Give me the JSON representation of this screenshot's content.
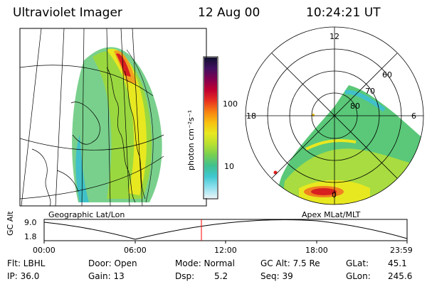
{
  "header": {
    "instrument": "Ultraviolet Imager",
    "date": "12 Aug 00",
    "time": "10:24:21 UT"
  },
  "left_panel": {
    "caption": "Geographic Lat/Lon"
  },
  "right_panel": {
    "caption": "Apex MLat/MLT",
    "mlt_labels": [
      "12",
      "18",
      "6",
      "0"
    ],
    "lat_labels": [
      "60",
      "70",
      "80"
    ]
  },
  "colorbar": {
    "unit_label": "photon cm⁻²s⁻¹",
    "ticks": [
      "100",
      "10"
    ],
    "colors": [
      "#e8f4f8",
      "#8ee0ee",
      "#3ec8d0",
      "#40c090",
      "#78d050",
      "#b8e030",
      "#e8e820",
      "#f8c010",
      "#f88010",
      "#e83020",
      "#c00030",
      "#800050",
      "#401060",
      "#101030"
    ]
  },
  "altitude_plot": {
    "ylabel": "GC Alt",
    "y_ticks": [
      "9.0",
      "1.8"
    ],
    "x_ticks": [
      "00:00",
      "06:00",
      "12:00",
      "18:00",
      "23:59"
    ],
    "current_time_hours": 10.4,
    "marker_color": "#ff0000"
  },
  "status": {
    "filter": "Flt: LBHL",
    "ip": "IP: 36.0",
    "door": "Door: Open",
    "gain": "Gain: 13",
    "mode": "Mode: Normal",
    "dsp": "Dsp:",
    "dsp_value": "5.2",
    "gc_alt": "GC Alt: 7.5 Re",
    "seq": "Seq: 39",
    "glat": "GLat:",
    "glat_value": "45.1",
    "glon": "GLon:",
    "glon_value": "245.6"
  }
}
